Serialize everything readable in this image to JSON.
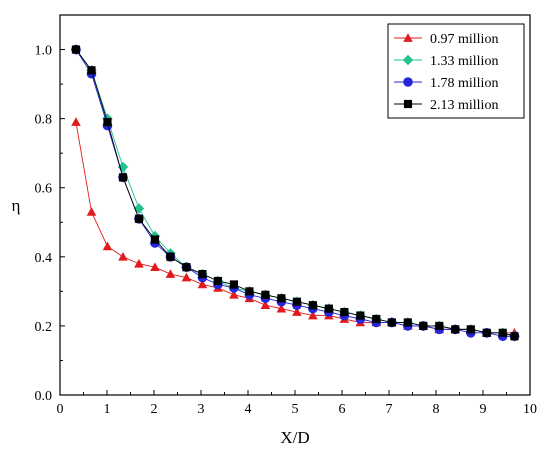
{
  "chart_data": {
    "type": "line",
    "title": "",
    "xlabel": "X/D",
    "ylabel": "η",
    "xlim": [
      0,
      10
    ],
    "ylim": [
      0.0,
      1.1
    ],
    "x_ticks": [
      0,
      1,
      2,
      3,
      4,
      5,
      6,
      7,
      8,
      9,
      10
    ],
    "y_ticks": [
      0.0,
      0.2,
      0.4,
      0.6,
      0.8,
      1.0
    ],
    "y_tick_labels": [
      "0.0",
      "0.2",
      "0.4",
      "0.6",
      "0.8",
      "1.0"
    ],
    "grid": false,
    "legend_position": "top-right",
    "series": [
      {
        "name": "0.97 million",
        "color": "#e31a1c",
        "marker": "triangle",
        "x": [
          0.34,
          0.67,
          1.01,
          1.34,
          1.68,
          2.02,
          2.35,
          2.69,
          3.03,
          3.36,
          3.7,
          4.03,
          4.37,
          4.71,
          5.04,
          5.38,
          5.72,
          6.05,
          6.39,
          6.73,
          7.06,
          7.4,
          7.73,
          8.07,
          8.41,
          8.74,
          9.08,
          9.42,
          9.67
        ],
        "y": [
          0.79,
          0.53,
          0.43,
          0.4,
          0.38,
          0.37,
          0.35,
          0.34,
          0.32,
          0.31,
          0.29,
          0.28,
          0.26,
          0.25,
          0.24,
          0.23,
          0.23,
          0.22,
          0.21,
          0.21,
          0.21,
          0.2,
          0.2,
          0.19,
          0.19,
          0.19,
          0.18,
          0.18,
          0.18
        ]
      },
      {
        "name": "1.33 million",
        "color": "#22c38e",
        "marker": "diamond",
        "x": [
          0.34,
          0.67,
          1.01,
          1.34,
          1.68,
          2.02,
          2.35,
          2.69,
          3.03,
          3.36,
          3.7,
          4.03,
          4.37,
          4.71,
          5.04,
          5.38,
          5.72,
          6.05,
          6.39,
          6.73,
          7.06,
          7.4,
          7.73,
          8.07,
          8.41,
          8.74,
          9.08,
          9.42,
          9.67
        ],
        "y": [
          1.0,
          0.94,
          0.8,
          0.66,
          0.54,
          0.46,
          0.41,
          0.37,
          0.35,
          0.33,
          0.31,
          0.3,
          0.29,
          0.28,
          0.27,
          0.26,
          0.25,
          0.24,
          0.23,
          0.22,
          0.21,
          0.21,
          0.2,
          0.2,
          0.19,
          0.19,
          0.18,
          0.18,
          0.17
        ]
      },
      {
        "name": "1.78 million",
        "color": "#2626d9",
        "marker": "circle",
        "x": [
          0.34,
          0.67,
          1.01,
          1.34,
          1.68,
          2.02,
          2.35,
          2.69,
          3.03,
          3.36,
          3.7,
          4.03,
          4.37,
          4.71,
          5.04,
          5.38,
          5.72,
          6.05,
          6.39,
          6.73,
          7.06,
          7.4,
          7.73,
          8.07,
          8.41,
          8.74,
          9.08,
          9.42,
          9.67
        ],
        "y": [
          1.0,
          0.93,
          0.78,
          0.63,
          0.51,
          0.44,
          0.4,
          0.37,
          0.34,
          0.32,
          0.31,
          0.29,
          0.28,
          0.27,
          0.26,
          0.25,
          0.24,
          0.23,
          0.22,
          0.21,
          0.21,
          0.2,
          0.2,
          0.19,
          0.19,
          0.18,
          0.18,
          0.17,
          0.17
        ]
      },
      {
        "name": "2.13 million",
        "color": "#000000",
        "marker": "square",
        "x": [
          0.34,
          0.67,
          1.01,
          1.34,
          1.68,
          2.02,
          2.35,
          2.69,
          3.03,
          3.36,
          3.7,
          4.03,
          4.37,
          4.71,
          5.04,
          5.38,
          5.72,
          6.05,
          6.39,
          6.73,
          7.06,
          7.4,
          7.73,
          8.07,
          8.41,
          8.74,
          9.08,
          9.42,
          9.67
        ],
        "y": [
          1.0,
          0.94,
          0.79,
          0.63,
          0.51,
          0.45,
          0.4,
          0.37,
          0.35,
          0.33,
          0.32,
          0.3,
          0.29,
          0.28,
          0.27,
          0.26,
          0.25,
          0.24,
          0.23,
          0.22,
          0.21,
          0.21,
          0.2,
          0.2,
          0.19,
          0.19,
          0.18,
          0.18,
          0.17
        ]
      }
    ]
  }
}
